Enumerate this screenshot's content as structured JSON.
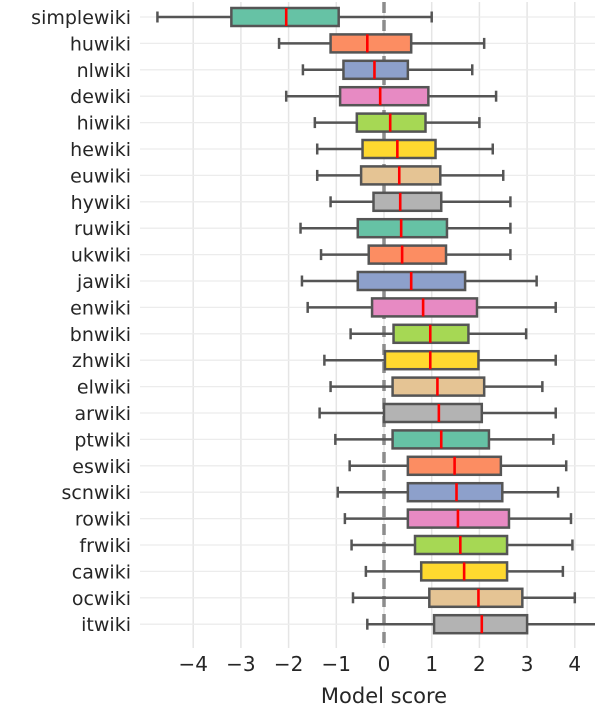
{
  "chart_data": {
    "type": "boxplot",
    "orientation": "horizontal",
    "xlabel": "Model score",
    "xlim": [
      -5,
      4.5
    ],
    "xticks": [
      -4,
      -3,
      -2,
      -1,
      0,
      1,
      2,
      3,
      4
    ],
    "xtick_labels": [
      "−4",
      "−3",
      "−2",
      "−1",
      "0",
      "1",
      "2",
      "3",
      "4"
    ],
    "grid": true,
    "reference_line_x": 0,
    "median_color": "#ff0000",
    "whisker_color": "#555555",
    "palette": [
      "#66c2a5",
      "#fc8d62",
      "#8da0cb",
      "#e78ac3",
      "#a6d854",
      "#ffd92f",
      "#e5c494",
      "#b3b3b3"
    ],
    "categories": [
      "simplewiki",
      "huwiki",
      "nlwiki",
      "dewiki",
      "hiwiki",
      "hewiki",
      "euwiki",
      "hywiki",
      "ruwiki",
      "ukwiki",
      "jawiki",
      "enwiki",
      "bnwiki",
      "zhwiki",
      "elwiki",
      "arwiki",
      "ptwiki",
      "eswiki",
      "scnwiki",
      "rowiki",
      "frwiki",
      "cawiki",
      "ocwiki",
      "itwiki"
    ],
    "boxes": [
      {
        "whislo": -4.75,
        "q1": -3.2,
        "med": -2.05,
        "q3": -0.95,
        "whishi": 1.0
      },
      {
        "whislo": -2.2,
        "q1": -1.12,
        "med": -0.35,
        "q3": 0.57,
        "whishi": 2.1
      },
      {
        "whislo": -1.7,
        "q1": -0.85,
        "med": -0.2,
        "q3": 0.5,
        "whishi": 1.85
      },
      {
        "whislo": -2.05,
        "q1": -0.92,
        "med": -0.08,
        "q3": 0.93,
        "whishi": 2.35
      },
      {
        "whislo": -1.45,
        "q1": -0.57,
        "med": 0.13,
        "q3": 0.87,
        "whishi": 2.0
      },
      {
        "whislo": -1.4,
        "q1": -0.45,
        "med": 0.28,
        "q3": 1.08,
        "whishi": 2.28
      },
      {
        "whislo": -1.4,
        "q1": -0.48,
        "med": 0.32,
        "q3": 1.18,
        "whishi": 2.5
      },
      {
        "whislo": -1.12,
        "q1": -0.22,
        "med": 0.34,
        "q3": 1.2,
        "whishi": 2.65
      },
      {
        "whislo": -1.75,
        "q1": -0.55,
        "med": 0.36,
        "q3": 1.32,
        "whishi": 2.65
      },
      {
        "whislo": -1.32,
        "q1": -0.32,
        "med": 0.38,
        "q3": 1.3,
        "whishi": 2.65
      },
      {
        "whislo": -1.72,
        "q1": -0.55,
        "med": 0.57,
        "q3": 1.7,
        "whishi": 3.2
      },
      {
        "whislo": -1.6,
        "q1": -0.25,
        "med": 0.82,
        "q3": 1.95,
        "whishi": 3.6
      },
      {
        "whislo": -0.7,
        "q1": 0.2,
        "med": 0.97,
        "q3": 1.77,
        "whishi": 2.98
      },
      {
        "whislo": -1.25,
        "q1": 0.02,
        "med": 0.97,
        "q3": 1.98,
        "whishi": 3.6
      },
      {
        "whislo": -1.12,
        "q1": 0.18,
        "med": 1.12,
        "q3": 2.1,
        "whishi": 3.32
      },
      {
        "whislo": -1.35,
        "q1": 0.0,
        "med": 1.15,
        "q3": 2.05,
        "whishi": 3.6
      },
      {
        "whislo": -1.02,
        "q1": 0.18,
        "med": 1.2,
        "q3": 2.2,
        "whishi": 3.55
      },
      {
        "whislo": -0.72,
        "q1": 0.5,
        "med": 1.48,
        "q3": 2.45,
        "whishi": 3.82
      },
      {
        "whislo": -0.97,
        "q1": 0.5,
        "med": 1.52,
        "q3": 2.48,
        "whishi": 3.65
      },
      {
        "whislo": -0.82,
        "q1": 0.5,
        "med": 1.55,
        "q3": 2.62,
        "whishi": 3.92
      },
      {
        "whislo": -0.68,
        "q1": 0.65,
        "med": 1.6,
        "q3": 2.58,
        "whishi": 3.95
      },
      {
        "whislo": -0.38,
        "q1": 0.78,
        "med": 1.68,
        "q3": 2.58,
        "whishi": 3.75
      },
      {
        "whislo": -0.65,
        "q1": 0.95,
        "med": 1.98,
        "q3": 2.9,
        "whishi": 4.0
      },
      {
        "whislo": -0.35,
        "q1": 1.05,
        "med": 2.05,
        "q3": 3.0,
        "whishi": 4.45
      }
    ]
  }
}
